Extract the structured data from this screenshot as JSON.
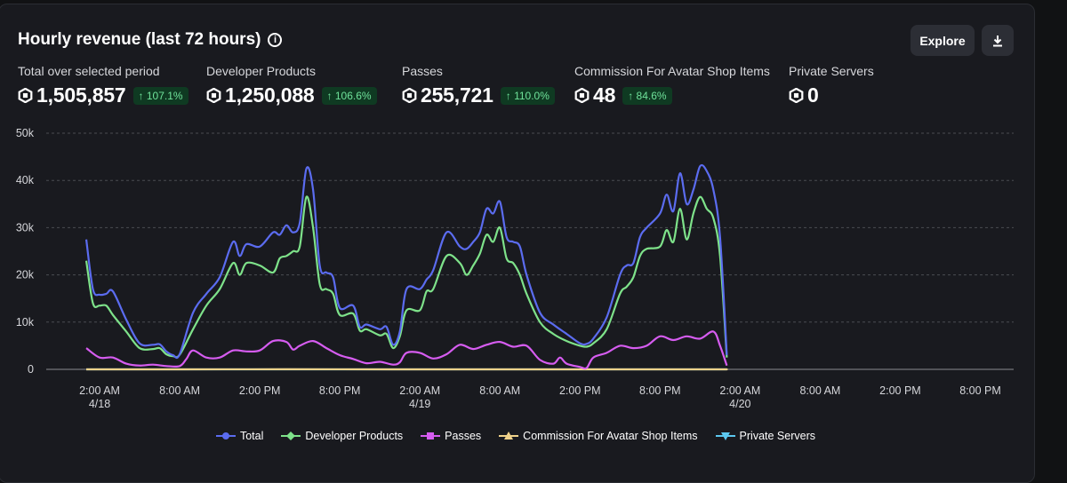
{
  "header": {
    "title": "Hourly revenue (last 72 hours)",
    "info_icon": "info-icon",
    "explore_label": "Explore",
    "download_icon": "download-icon"
  },
  "metrics": [
    {
      "label": "Total over selected period",
      "value": "1,505,857",
      "change": "↑ 107.1%"
    },
    {
      "label": "Developer Products",
      "value": "1,250,088",
      "change": "↑ 106.6%"
    },
    {
      "label": "Passes",
      "value": "255,721",
      "change": "↑ 110.0%"
    },
    {
      "label": "Commission For Avatar Shop Items",
      "value": "48",
      "change": "↑ 84.6%"
    },
    {
      "label": "Private Servers",
      "value": "0",
      "change": ""
    }
  ],
  "chart_data": {
    "type": "line",
    "x_unit": "hours since 12:00 AM 4/18",
    "xlim": [
      -2,
      70.5
    ],
    "ylim": [
      0,
      50000
    ],
    "y_ticks": [
      0,
      10000,
      20000,
      30000,
      40000,
      50000
    ],
    "y_tick_labels": [
      "0",
      "10k",
      "20k",
      "30k",
      "40k",
      "50k"
    ],
    "grid": true,
    "x_ticks": [
      {
        "x": 2,
        "label": "2:00 AM",
        "sub": "4/18"
      },
      {
        "x": 8,
        "label": "8:00 AM",
        "sub": ""
      },
      {
        "x": 14,
        "label": "2:00 PM",
        "sub": ""
      },
      {
        "x": 20,
        "label": "8:00 PM",
        "sub": ""
      },
      {
        "x": 26,
        "label": "2:00 AM",
        "sub": "4/19"
      },
      {
        "x": 32,
        "label": "8:00 AM",
        "sub": ""
      },
      {
        "x": 38,
        "label": "2:00 PM",
        "sub": ""
      },
      {
        "x": 44,
        "label": "8:00 PM",
        "sub": ""
      },
      {
        "x": 50,
        "label": "2:00 AM",
        "sub": "4/20"
      },
      {
        "x": 56,
        "label": "8:00 AM",
        "sub": ""
      },
      {
        "x": 62,
        "label": "2:00 PM",
        "sub": ""
      },
      {
        "x": 68,
        "label": "8:00 PM",
        "sub": ""
      }
    ],
    "legend_position": "bottom",
    "series": [
      {
        "name": "Total",
        "color": "#5b6cf0",
        "marker": "circle",
        "points": [
          [
            1,
            27500
          ],
          [
            1.5,
            17000
          ],
          [
            2,
            15800
          ],
          [
            2.5,
            16000
          ],
          [
            3,
            16500
          ],
          [
            4,
            10500
          ],
          [
            5,
            5500
          ],
          [
            6,
            5200
          ],
          [
            6.5,
            5300
          ],
          [
            7,
            3800
          ],
          [
            7.5,
            3000
          ],
          [
            8,
            3200
          ],
          [
            9,
            12000
          ],
          [
            10,
            16000
          ],
          [
            11,
            19500
          ],
          [
            12,
            27000
          ],
          [
            12.5,
            24000
          ],
          [
            13,
            26500
          ],
          [
            14,
            26000
          ],
          [
            15,
            29000
          ],
          [
            15.5,
            28500
          ],
          [
            16,
            30500
          ],
          [
            16.5,
            29000
          ],
          [
            17,
            31000
          ],
          [
            17.5,
            42500
          ],
          [
            18,
            38000
          ],
          [
            18.5,
            22000
          ],
          [
            19,
            20500
          ],
          [
            19.5,
            19500
          ],
          [
            20,
            13000
          ],
          [
            21,
            13500
          ],
          [
            21.5,
            9000
          ],
          [
            22,
            9500
          ],
          [
            23,
            8500
          ],
          [
            23.5,
            9000
          ],
          [
            24,
            5200
          ],
          [
            24.5,
            8000
          ],
          [
            25,
            17000
          ],
          [
            26,
            17000
          ],
          [
            26.5,
            19000
          ],
          [
            27,
            21000
          ],
          [
            28,
            29000
          ],
          [
            29,
            26000
          ],
          [
            29.5,
            25500
          ],
          [
            30,
            27000
          ],
          [
            30.5,
            29000
          ],
          [
            31,
            34000
          ],
          [
            31.5,
            33000
          ],
          [
            32,
            35500
          ],
          [
            32.5,
            28000
          ],
          [
            33,
            27000
          ],
          [
            33.5,
            26000
          ],
          [
            34,
            20000
          ],
          [
            35,
            12000
          ],
          [
            36,
            9500
          ],
          [
            37,
            7500
          ],
          [
            38,
            5500
          ],
          [
            38.5,
            5400
          ],
          [
            39,
            6500
          ],
          [
            40,
            11000
          ],
          [
            41,
            20000
          ],
          [
            41.5,
            22000
          ],
          [
            42,
            22500
          ],
          [
            42.5,
            28000
          ],
          [
            43,
            30000
          ],
          [
            44,
            33000
          ],
          [
            44.5,
            37000
          ],
          [
            45,
            33500
          ],
          [
            45.5,
            41500
          ],
          [
            46,
            35000
          ],
          [
            46.5,
            38000
          ],
          [
            47,
            43000
          ],
          [
            47.5,
            42000
          ],
          [
            48,
            38000
          ],
          [
            48.5,
            28000
          ],
          [
            49,
            3000
          ]
        ]
      },
      {
        "name": "Developer Products",
        "color": "#7ee28a",
        "marker": "diamond",
        "points": [
          [
            1,
            23000
          ],
          [
            1.5,
            14000
          ],
          [
            2,
            13500
          ],
          [
            2.5,
            13500
          ],
          [
            3,
            11500
          ],
          [
            4,
            8000
          ],
          [
            5,
            4500
          ],
          [
            6,
            4300
          ],
          [
            6.5,
            4500
          ],
          [
            7,
            3200
          ],
          [
            7.5,
            2800
          ],
          [
            8,
            3100
          ],
          [
            9,
            8500
          ],
          [
            10,
            13500
          ],
          [
            11,
            17000
          ],
          [
            12,
            22500
          ],
          [
            12.5,
            20000
          ],
          [
            13,
            22500
          ],
          [
            14,
            22000
          ],
          [
            15,
            20500
          ],
          [
            15.5,
            23500
          ],
          [
            16,
            24000
          ],
          [
            16.5,
            25000
          ],
          [
            17,
            26000
          ],
          [
            17.5,
            36500
          ],
          [
            18,
            30000
          ],
          [
            18.5,
            18000
          ],
          [
            19,
            17000
          ],
          [
            19.5,
            16000
          ],
          [
            20,
            11500
          ],
          [
            21,
            11800
          ],
          [
            21.5,
            8200
          ],
          [
            22,
            8500
          ],
          [
            23,
            7200
          ],
          [
            23.5,
            7500
          ],
          [
            24,
            4500
          ],
          [
            24.5,
            7000
          ],
          [
            25,
            12500
          ],
          [
            26,
            12500
          ],
          [
            26.5,
            16500
          ],
          [
            27,
            17000
          ],
          [
            28,
            24000
          ],
          [
            29,
            22500
          ],
          [
            29.5,
            20000
          ],
          [
            30,
            22000
          ],
          [
            30.5,
            24500
          ],
          [
            31,
            28500
          ],
          [
            31.5,
            27000
          ],
          [
            32,
            30000
          ],
          [
            32.5,
            23500
          ],
          [
            33,
            22500
          ],
          [
            33.5,
            20000
          ],
          [
            34,
            16000
          ],
          [
            35,
            10000
          ],
          [
            36,
            7500
          ],
          [
            37,
            6000
          ],
          [
            38,
            5000
          ],
          [
            38.5,
            4800
          ],
          [
            39,
            5500
          ],
          [
            40,
            8500
          ],
          [
            41,
            16000
          ],
          [
            41.5,
            17500
          ],
          [
            42,
            19500
          ],
          [
            42.5,
            24000
          ],
          [
            43,
            25500
          ],
          [
            44,
            26000
          ],
          [
            44.5,
            29500
          ],
          [
            45,
            27000
          ],
          [
            45.5,
            34000
          ],
          [
            46,
            27500
          ],
          [
            46.5,
            33000
          ],
          [
            47,
            36500
          ],
          [
            47.5,
            34000
          ],
          [
            48,
            32000
          ],
          [
            48.5,
            24000
          ],
          [
            49,
            2500
          ]
        ]
      },
      {
        "name": "Passes",
        "color": "#d65cf0",
        "marker": "square",
        "points": [
          [
            1,
            4500
          ],
          [
            2,
            2500
          ],
          [
            3,
            2500
          ],
          [
            4,
            1200
          ],
          [
            5,
            800
          ],
          [
            6,
            1000
          ],
          [
            7,
            700
          ],
          [
            8,
            700
          ],
          [
            8.5,
            2200
          ],
          [
            9,
            4000
          ],
          [
            10,
            2500
          ],
          [
            11,
            2500
          ],
          [
            12,
            4000
          ],
          [
            13,
            3800
          ],
          [
            14,
            4000
          ],
          [
            15,
            6000
          ],
          [
            16,
            5800
          ],
          [
            16.5,
            4200
          ],
          [
            17,
            5000
          ],
          [
            18,
            6000
          ],
          [
            19,
            4500
          ],
          [
            20,
            3000
          ],
          [
            21,
            2200
          ],
          [
            22,
            1300
          ],
          [
            23,
            1600
          ],
          [
            24,
            1000
          ],
          [
            24.5,
            1500
          ],
          [
            25,
            3500
          ],
          [
            26,
            3500
          ],
          [
            27,
            2300
          ],
          [
            28,
            3200
          ],
          [
            29,
            5200
          ],
          [
            30,
            4300
          ],
          [
            31,
            5200
          ],
          [
            32,
            5800
          ],
          [
            33,
            4800
          ],
          [
            34,
            5000
          ],
          [
            35,
            2000
          ],
          [
            36,
            1200
          ],
          [
            36.5,
            2500
          ],
          [
            37,
            1200
          ],
          [
            38,
            500
          ],
          [
            38.5,
            300
          ],
          [
            39,
            2500
          ],
          [
            40,
            3500
          ],
          [
            41,
            5000
          ],
          [
            42,
            4500
          ],
          [
            43,
            5000
          ],
          [
            44,
            7000
          ],
          [
            45,
            6200
          ],
          [
            46,
            7000
          ],
          [
            47,
            6500
          ],
          [
            48,
            8000
          ],
          [
            48.5,
            5000
          ],
          [
            49,
            800
          ]
        ]
      },
      {
        "name": "Commission For Avatar Shop Items",
        "color": "#f0d28a",
        "marker": "triangle-up",
        "points": [
          [
            1,
            5
          ],
          [
            8,
            0
          ],
          [
            16,
            10
          ],
          [
            24,
            0
          ],
          [
            32,
            5
          ],
          [
            40,
            0
          ],
          [
            48,
            5
          ],
          [
            49,
            0
          ]
        ]
      },
      {
        "name": "Private Servers",
        "color": "#5cc8f0",
        "marker": "triangle-down",
        "points": [
          [
            1,
            0
          ],
          [
            49,
            0
          ]
        ]
      }
    ]
  }
}
